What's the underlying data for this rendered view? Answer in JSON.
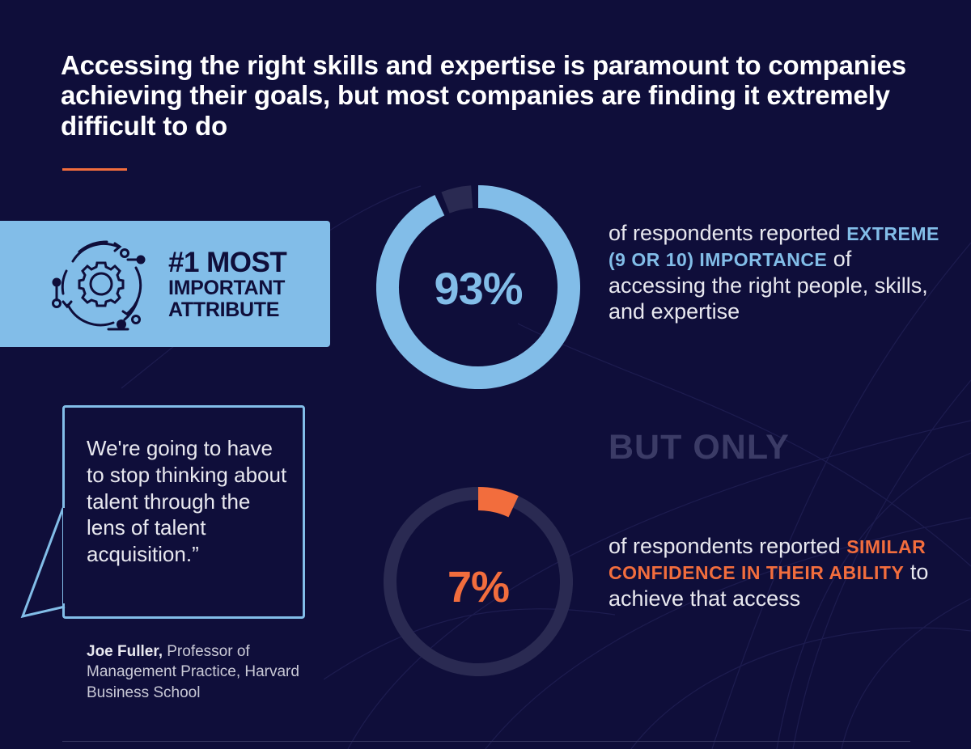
{
  "headline": "Accessing the right skills and expertise is paramount to companies achieving their goals, but most companies are finding it extremely difficult to do",
  "attribute_panel": {
    "line1": "#1 MOST",
    "line2": "IMPORTANT",
    "line3": "ATTRIBUTE",
    "icon": "gear-cycle-icon"
  },
  "stat1": {
    "pre": "of respondents reported ",
    "highlight": "EXTREME (9 OR 10) IMPORTANCE",
    "post": " of accessing the right people, skills, and expertise"
  },
  "divider_text": "BUT ONLY",
  "stat2": {
    "pre": "of respondents reported ",
    "highlight": "SIMILAR CONFIDENCE IN THEIR ABILITY",
    "post": " to achieve that access"
  },
  "quote": {
    "text": "We're going to have to stop thinking about talent through the lens of talent acquisition.”",
    "author": "Joe Fuller,",
    "author_title": " Professor of Management Practice, Harvard Business School"
  },
  "colors": {
    "background": "#0f0e3a",
    "accent_blue": "#82bde8",
    "accent_orange": "#f26d3d",
    "track": "#2a2a52",
    "muted": "#3b3b66"
  },
  "chart_data": [
    {
      "type": "pie",
      "variant": "donut",
      "value": 93,
      "max": 100,
      "label": "93%",
      "color": "#82bde8"
    },
    {
      "type": "pie",
      "variant": "donut",
      "value": 7,
      "max": 100,
      "label": "7%",
      "color": "#f26d3d"
    }
  ]
}
